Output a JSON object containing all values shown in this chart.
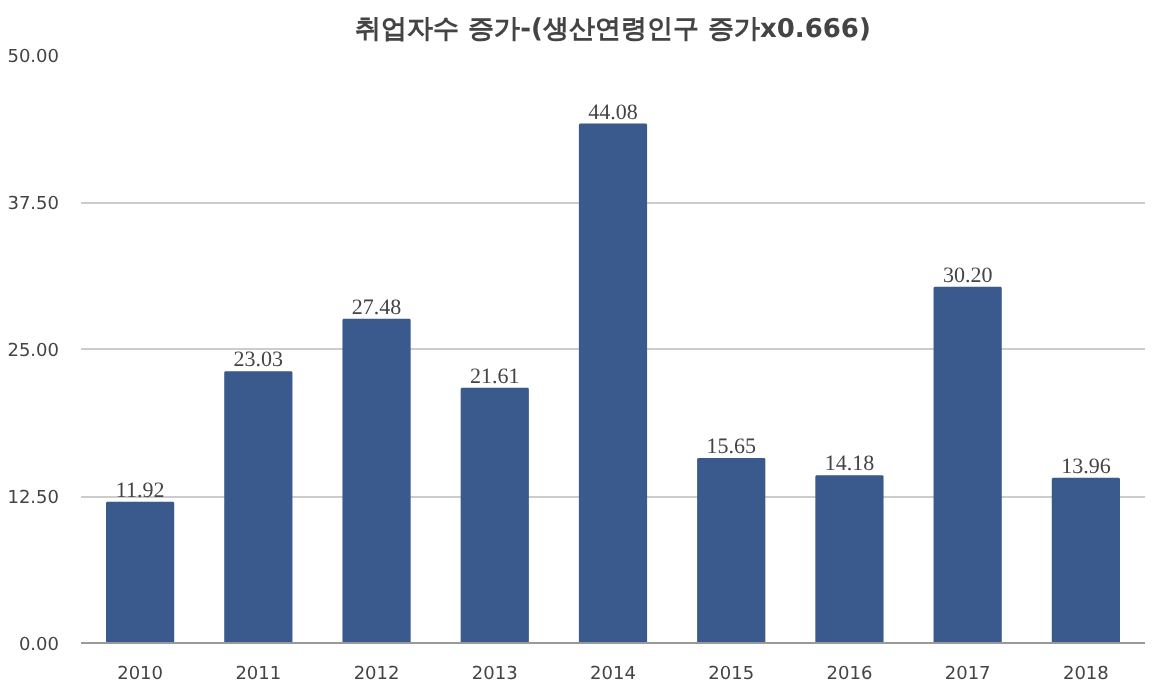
{
  "chart_data": {
    "type": "bar",
    "title": "취업자수 증가-(생산연령인구 증가x0.666)",
    "categories": [
      "2010",
      "2011",
      "2012",
      "2013",
      "2014",
      "2015",
      "2016",
      "2017",
      "2018"
    ],
    "values": [
      11.92,
      23.03,
      27.48,
      21.61,
      44.08,
      15.65,
      14.18,
      30.2,
      13.96
    ],
    "value_labels": [
      "11.92",
      "23.03",
      "27.48",
      "21.61",
      "44.08",
      "15.65",
      "14.18",
      "30.20",
      "13.96"
    ],
    "color": "#3a5a8e",
    "ylim": [
      0,
      50
    ],
    "yticks": [
      {
        "value": 0,
        "label": "0.00"
      },
      {
        "value": 12.5,
        "label": "12.50"
      },
      {
        "value": 25,
        "label": "25.00"
      },
      {
        "value": 37.5,
        "label": "37.50"
      },
      {
        "value": 50,
        "label": "50.00"
      }
    ],
    "grid": "y"
  }
}
